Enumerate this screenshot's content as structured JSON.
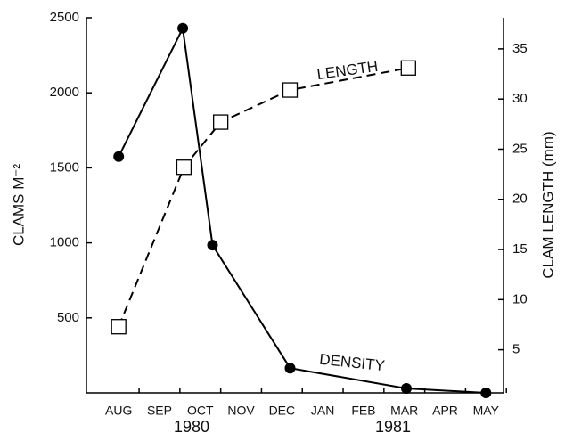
{
  "chart_data": {
    "type": "line",
    "ylabel": "CLAMS M⁻²",
    "y2label": "CLAM LENGTH (mm)",
    "xlim": [
      -0.79,
      9.43
    ],
    "xticks": [
      {
        "value": 0,
        "label": "AUG"
      },
      {
        "value": 1,
        "label": "SEP"
      },
      {
        "value": 2,
        "label": "OCT"
      },
      {
        "value": 3,
        "label": "NOV"
      },
      {
        "value": 4,
        "label": "DEC"
      },
      {
        "value": 5,
        "label": "JAN"
      },
      {
        "value": 6,
        "label": "FEB"
      },
      {
        "value": 7,
        "label": "MAR"
      },
      {
        "value": 8,
        "label": "APR"
      },
      {
        "value": 9,
        "label": "MAY"
      }
    ],
    "years": [
      "1980",
      "1981"
    ],
    "ylim": [
      0,
      2500
    ],
    "yticks": [
      500,
      1000,
      1500,
      2000,
      2500
    ],
    "y2lim": [
      0.7,
      38.1
    ],
    "y2ticks": [
      5,
      10,
      15,
      20,
      25,
      30,
      35
    ],
    "series": [
      {
        "name": "DENSITY",
        "color": "#000000",
        "marker": "circle",
        "dashed": false,
        "x": [
          0,
          1.57,
          2.3,
          4.2,
          7.05,
          9
        ],
        "values": [
          1575,
          2430,
          985,
          165,
          30,
          0
        ]
      },
      {
        "name": "LENGTH",
        "color": "#000000",
        "marker": "square",
        "dashed": true,
        "axis": "y2",
        "x": [
          0,
          1.6,
          2.5,
          4.2,
          7.1
        ],
        "values": [
          7.3,
          23.2,
          27.7,
          30.9,
          33.1
        ]
      }
    ]
  }
}
